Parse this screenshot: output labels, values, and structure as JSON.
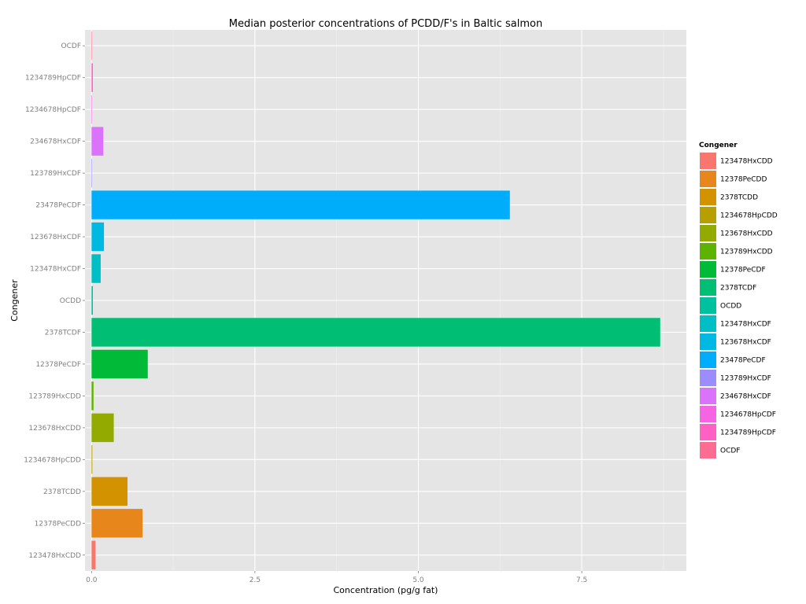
{
  "chart_data": {
    "type": "bar",
    "orientation": "horizontal",
    "title": "Median posterior concentrations of PCDD/F's in Baltic salmon",
    "xlabel": "Concentration (pg/g fat)",
    "ylabel": "Congener",
    "xlim": [
      -0.1,
      9.1
    ],
    "xticks": [
      0.0,
      2.5,
      5.0,
      7.5
    ],
    "xtick_labels": [
      "0.0",
      "2.5",
      "5.0",
      "7.5"
    ],
    "grid": true,
    "legend": {
      "title": "Congener",
      "position": "right"
    },
    "categories": [
      "123478HxCDD",
      "12378PeCDD",
      "2378TCDD",
      "1234678HpCDD",
      "123678HxCDD",
      "123789HxCDD",
      "12378PeCDF",
      "2378TCDF",
      "OCDD",
      "123478HxCDF",
      "123678HxCDF",
      "23478PeCDF",
      "123789HxCDF",
      "234678HxCDF",
      "1234678HpCDF",
      "1234789HpCDF",
      "OCDF"
    ],
    "values": [
      0.06,
      0.78,
      0.55,
      0.01,
      0.34,
      0.03,
      0.86,
      8.7,
      0.02,
      0.14,
      0.19,
      6.4,
      0.0,
      0.18,
      0.0,
      0.02,
      0.0
    ],
    "colors": [
      "#F8766D",
      "#E7861A",
      "#D39200",
      "#B79F00",
      "#93AA00",
      "#5EB300",
      "#00BA38",
      "#00BF74",
      "#00C19F",
      "#00BFC4",
      "#00B9E3",
      "#00ADFA",
      "#9C8DFF",
      "#DB72FB",
      "#F564E3",
      "#FF61C3",
      "#FF6C91"
    ]
  }
}
